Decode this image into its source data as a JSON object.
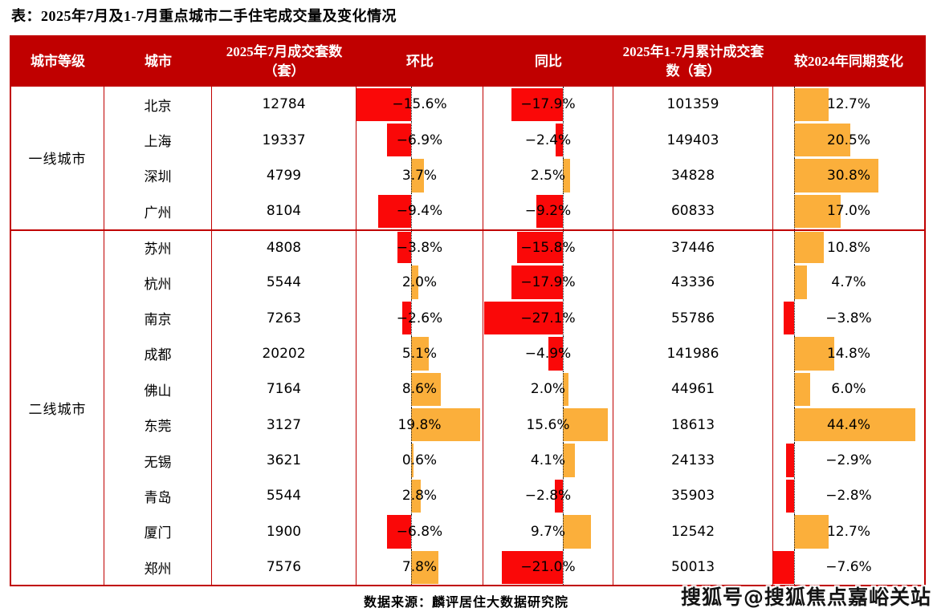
{
  "title": "表：2025年7月及1-7月重点城市二手住宅成交量及变化情况",
  "source": "数据来源：麟评居住大数据研究院",
  "watermark": "搜狐号@搜狐焦点嘉峪关站",
  "colors": {
    "header_bg": "#c00000",
    "border": "#c00000",
    "bar_positive": "#fbaf3b",
    "bar_negative": "#fa0808",
    "header_text": "#ffffff",
    "body_text": "#000000"
  },
  "chart_data": {
    "type": "table",
    "title": "表：2025年7月及1-7月重点城市二手住宅成交量及变化情况",
    "columns": [
      "城市等级",
      "城市",
      "2025年7月成交套数（套）",
      "环比",
      "同比",
      "2025年1-7月累计成交套数（套）",
      "较2024年同期变化"
    ],
    "bar_columns": [
      "环比",
      "同比",
      "较2024年同期变化"
    ],
    "bar_style": "diverging horizontal bars, red = negative, orange = positive, dotted zero axis",
    "groups": [
      {
        "tier": "一线城市",
        "rows": [
          {
            "city": "北京",
            "jul_sales": "12784",
            "mom": -15.6,
            "yoy": -17.9,
            "cum_sales": "101359",
            "vs_2024": 12.7
          },
          {
            "city": "上海",
            "jul_sales": "19337",
            "mom": -6.9,
            "yoy": -2.4,
            "cum_sales": "149403",
            "vs_2024": 20.5
          },
          {
            "city": "深圳",
            "jul_sales": "4799",
            "mom": 3.7,
            "yoy": 2.5,
            "cum_sales": "34828",
            "vs_2024": 30.8
          },
          {
            "city": "广州",
            "jul_sales": "8104",
            "mom": -9.4,
            "yoy": -9.2,
            "cum_sales": "60833",
            "vs_2024": 17.0
          }
        ]
      },
      {
        "tier": "二线城市",
        "rows": [
          {
            "city": "苏州",
            "jul_sales": "4808",
            "mom": -3.8,
            "yoy": -15.8,
            "cum_sales": "37446",
            "vs_2024": 10.8
          },
          {
            "city": "杭州",
            "jul_sales": "5544",
            "mom": 2.0,
            "yoy": -17.9,
            "cum_sales": "43336",
            "vs_2024": 4.7
          },
          {
            "city": "南京",
            "jul_sales": "7263",
            "mom": -2.6,
            "yoy": -27.1,
            "cum_sales": "55786",
            "vs_2024": -3.8
          },
          {
            "city": "成都",
            "jul_sales": "20202",
            "mom": 5.1,
            "yoy": -4.9,
            "cum_sales": "141986",
            "vs_2024": 14.8
          },
          {
            "city": "佛山",
            "jul_sales": "7164",
            "mom": 8.6,
            "yoy": 2.0,
            "cum_sales": "44961",
            "vs_2024": 6.0
          },
          {
            "city": "东莞",
            "jul_sales": "3127",
            "mom": 19.8,
            "yoy": 15.6,
            "cum_sales": "18613",
            "vs_2024": 44.4
          },
          {
            "city": "无锡",
            "jul_sales": "3621",
            "mom": 0.6,
            "yoy": 4.1,
            "cum_sales": "24133",
            "vs_2024": -2.9
          },
          {
            "city": "青岛",
            "jul_sales": "5544",
            "mom": 2.8,
            "yoy": -2.8,
            "cum_sales": "35903",
            "vs_2024": -2.8
          },
          {
            "city": "厦门",
            "jul_sales": "1900",
            "mom": -6.8,
            "yoy": 9.7,
            "cum_sales": "12542",
            "vs_2024": 12.7
          },
          {
            "city": "郑州",
            "jul_sales": "7576",
            "mom": 7.8,
            "yoy": -21.0,
            "cum_sales": "50013",
            "vs_2024": -7.6
          }
        ]
      }
    ],
    "source": "数据来源：麟评居住大数据研究院"
  }
}
